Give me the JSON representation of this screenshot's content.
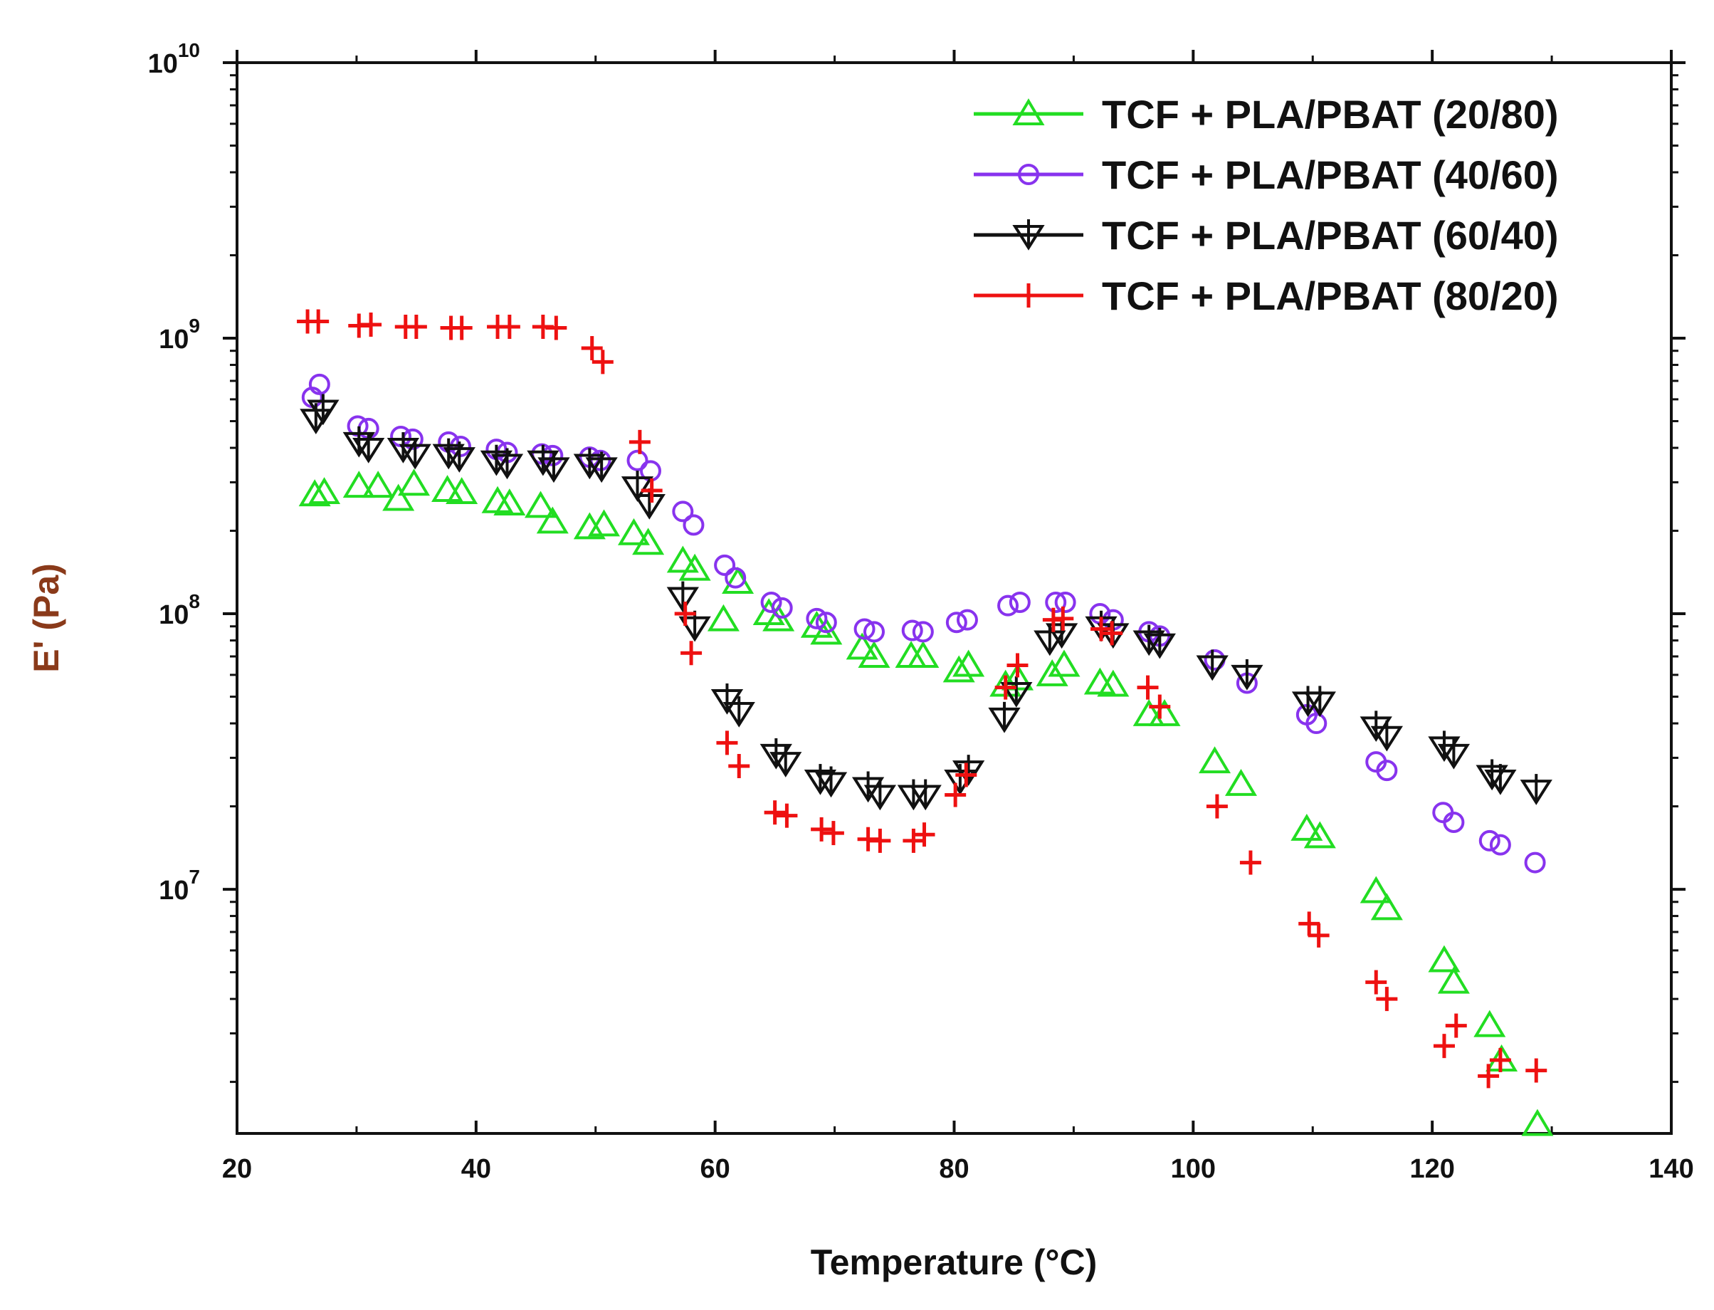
{
  "chart_data": {
    "type": "scatter",
    "xlabel": "Temperature (°C)",
    "ylabel": "E' (Pa)",
    "xlim": [
      20,
      140
    ],
    "ylim": [
      1300000.0,
      10000000000.0
    ],
    "log_y": true,
    "grid": false,
    "legend_position": "top-right",
    "x_ticks": [
      20,
      40,
      60,
      80,
      100,
      120,
      140
    ],
    "x_tick_labels": [
      "20",
      "40",
      "60",
      "80",
      "100",
      "120",
      "140"
    ],
    "y_ticks": [
      {
        "value": 10000000.0,
        "base": "10",
        "exp": "7"
      },
      {
        "value": 100000000.0,
        "base": "10",
        "exp": "8"
      },
      {
        "value": 1000000000.0,
        "base": "10",
        "exp": "9"
      },
      {
        "value": 10000000000.0,
        "base": "10",
        "exp": "10"
      }
    ],
    "series": [
      {
        "name": "TCF + PLA/PBAT (20/80)",
        "color": "#22dd22",
        "marker": "triangle-up",
        "points": [
          [
            26.5,
            270000000.0
          ],
          [
            27.3,
            275000000.0
          ],
          [
            30.2,
            290000000.0
          ],
          [
            31.8,
            290000000.0
          ],
          [
            33.5,
            260000000.0
          ],
          [
            34.8,
            295000000.0
          ],
          [
            37.6,
            280000000.0
          ],
          [
            38.8,
            275000000.0
          ],
          [
            41.8,
            255000000.0
          ],
          [
            42.8,
            250000000.0
          ],
          [
            45.4,
            245000000.0
          ],
          [
            46.4,
            215000000.0
          ],
          [
            49.5,
            205000000.0
          ],
          [
            50.7,
            210000000.0
          ],
          [
            53.2,
            195000000.0
          ],
          [
            54.4,
            180000000.0
          ],
          [
            57.3,
            155000000.0
          ],
          [
            58.3,
            145000000.0
          ],
          [
            60.7,
            95000000.0
          ],
          [
            61.9,
            130000000.0
          ],
          [
            64.5,
            100000000.0
          ],
          [
            65.3,
            95000000.0
          ],
          [
            68.5,
            90000000.0
          ],
          [
            69.3,
            85000000.0
          ],
          [
            72.3,
            75000000.0
          ],
          [
            73.3,
            70000000.0
          ],
          [
            76.4,
            70000000.0
          ],
          [
            77.4,
            70000000.0
          ],
          [
            80.4,
            62000000.0
          ],
          [
            81.2,
            65000000.0
          ],
          [
            84.3,
            55000000.0
          ],
          [
            85.3,
            58000000.0
          ],
          [
            88.2,
            60000000.0
          ],
          [
            89.2,
            65000000.0
          ],
          [
            92.2,
            56000000.0
          ],
          [
            93.3,
            55000000.0
          ],
          [
            96.3,
            43000000.0
          ],
          [
            97.6,
            43000000.0
          ],
          [
            101.8,
            29000000.0
          ],
          [
            104.0,
            24000000.0
          ],
          [
            109.5,
            16500000.0
          ],
          [
            110.6,
            15500000.0
          ],
          [
            115.3,
            9800000.0
          ],
          [
            116.2,
            8500000.0
          ],
          [
            121.0,
            5500000.0
          ],
          [
            121.8,
            4600000.0
          ],
          [
            124.8,
            3200000.0
          ],
          [
            125.8,
            2400000.0
          ],
          [
            128.8,
            1400000.0
          ]
        ]
      },
      {
        "name": "TCF + PLA/PBAT (40/60)",
        "color": "#8833ee",
        "marker": "circle",
        "points": [
          [
            26.3,
            610000000.0
          ],
          [
            26.9,
            680000000.0
          ],
          [
            30.1,
            480000000.0
          ],
          [
            31.0,
            470000000.0
          ],
          [
            33.7,
            440000000.0
          ],
          [
            34.7,
            430000000.0
          ],
          [
            37.7,
            420000000.0
          ],
          [
            38.7,
            405000000.0
          ],
          [
            41.7,
            395000000.0
          ],
          [
            42.6,
            385000000.0
          ],
          [
            45.5,
            380000000.0
          ],
          [
            46.4,
            375000000.0
          ],
          [
            49.5,
            370000000.0
          ],
          [
            50.4,
            360000000.0
          ],
          [
            53.5,
            360000000.0
          ],
          [
            54.6,
            330000000.0
          ],
          [
            57.3,
            235000000.0
          ],
          [
            58.2,
            210000000.0
          ],
          [
            60.8,
            150000000.0
          ],
          [
            61.7,
            135000000.0
          ],
          [
            64.7,
            110000000.0
          ],
          [
            65.6,
            105000000.0
          ],
          [
            68.5,
            96000000.0
          ],
          [
            69.3,
            93000000.0
          ],
          [
            72.5,
            88000000.0
          ],
          [
            73.3,
            86000000.0
          ],
          [
            76.5,
            87000000.0
          ],
          [
            77.4,
            86000000.0
          ],
          [
            80.2,
            93000000.0
          ],
          [
            81.1,
            95000000.0
          ],
          [
            84.5,
            107000000.0
          ],
          [
            85.5,
            110000000.0
          ],
          [
            88.5,
            110000000.0
          ],
          [
            89.3,
            110000000.0
          ],
          [
            92.2,
            100000000.0
          ],
          [
            93.3,
            95000000.0
          ],
          [
            96.3,
            86000000.0
          ],
          [
            97.2,
            83000000.0
          ],
          [
            101.8,
            68000000.0
          ],
          [
            104.5,
            56000000.0
          ],
          [
            109.5,
            43000000.0
          ],
          [
            110.3,
            40000000.0
          ],
          [
            115.3,
            29000000.0
          ],
          [
            116.2,
            27000000.0
          ],
          [
            120.9,
            19000000.0
          ],
          [
            121.8,
            17500000.0
          ],
          [
            124.8,
            15000000.0
          ],
          [
            125.7,
            14500000.0
          ],
          [
            128.6,
            12500000.0
          ]
        ]
      },
      {
        "name": "TCF + PLA/PBAT (60/40)",
        "color": "#111111",
        "marker": "triangle-down-cross",
        "points": [
          [
            26.6,
            510000000.0
          ],
          [
            27.2,
            550000000.0
          ],
          [
            30.2,
            420000000.0
          ],
          [
            31.0,
            400000000.0
          ],
          [
            33.9,
            400000000.0
          ],
          [
            34.9,
            380000000.0
          ],
          [
            37.7,
            380000000.0
          ],
          [
            38.6,
            370000000.0
          ],
          [
            41.7,
            360000000.0
          ],
          [
            42.6,
            350000000.0
          ],
          [
            45.6,
            360000000.0
          ],
          [
            46.5,
            340000000.0
          ],
          [
            49.5,
            350000000.0
          ],
          [
            50.5,
            340000000.0
          ],
          [
            53.5,
            290000000.0
          ],
          [
            54.5,
            250000000.0
          ],
          [
            57.3,
            115000000.0
          ],
          [
            58.3,
            90000000.0
          ],
          [
            61.0,
            49000000.0
          ],
          [
            62.0,
            44000000.0
          ],
          [
            65.1,
            31000000.0
          ],
          [
            65.9,
            29000000.0
          ],
          [
            68.8,
            25000000.0
          ],
          [
            69.7,
            24500000.0
          ],
          [
            72.8,
            23500000.0
          ],
          [
            73.8,
            22000000.0
          ],
          [
            76.6,
            22000000.0
          ],
          [
            77.6,
            22000000.0
          ],
          [
            80.5,
            25000000.0
          ],
          [
            81.2,
            27000000.0
          ],
          [
            84.2,
            42000000.0
          ],
          [
            85.2,
            52000000.0
          ],
          [
            88.0,
            80000000.0
          ],
          [
            89.0,
            85000000.0
          ],
          [
            92.3,
            90000000.0
          ],
          [
            93.3,
            85000000.0
          ],
          [
            96.3,
            80000000.0
          ],
          [
            97.2,
            78000000.0
          ],
          [
            101.6,
            65000000.0
          ],
          [
            104.5,
            60000000.0
          ],
          [
            109.6,
            48000000.0
          ],
          [
            110.6,
            48000000.0
          ],
          [
            115.3,
            39000000.0
          ],
          [
            116.2,
            36000000.0
          ],
          [
            121.0,
            33000000.0
          ],
          [
            121.8,
            31000000.0
          ],
          [
            125.0,
            26000000.0
          ],
          [
            125.7,
            25000000.0
          ],
          [
            128.7,
            23000000.0
          ]
        ]
      },
      {
        "name": "TCF + PLA/PBAT (80/20)",
        "color": "#ee1111",
        "marker": "plus",
        "points": [
          [
            25.9,
            1150000000.0
          ],
          [
            26.8,
            1150000000.0
          ],
          [
            30.2,
            1110000000.0
          ],
          [
            31.2,
            1120000000.0
          ],
          [
            34.1,
            1100000000.0
          ],
          [
            35.0,
            1100000000.0
          ],
          [
            37.9,
            1090000000.0
          ],
          [
            38.8,
            1090000000.0
          ],
          [
            41.8,
            1100000000.0
          ],
          [
            42.8,
            1100000000.0
          ],
          [
            45.6,
            1100000000.0
          ],
          [
            46.7,
            1090000000.0
          ],
          [
            49.7,
            920000000.0
          ],
          [
            50.6,
            820000000.0
          ],
          [
            53.7,
            420000000.0
          ],
          [
            54.7,
            280000000.0
          ],
          [
            57.5,
            100000000.0
          ],
          [
            58.0,
            72000000.0
          ],
          [
            61.0,
            34000000.0
          ],
          [
            62.0,
            28000000.0
          ],
          [
            65.0,
            19000000.0
          ],
          [
            66.0,
            18500000.0
          ],
          [
            68.9,
            16500000.0
          ],
          [
            69.9,
            16000000.0
          ],
          [
            72.8,
            15200000.0
          ],
          [
            73.8,
            15000000.0
          ],
          [
            76.6,
            15000000.0
          ],
          [
            77.5,
            15800000.0
          ],
          [
            80.1,
            22000000.0
          ],
          [
            81.0,
            26000000.0
          ],
          [
            84.3,
            54000000.0
          ],
          [
            85.3,
            65000000.0
          ],
          [
            88.3,
            95000000.0
          ],
          [
            89.1,
            96000000.0
          ],
          [
            92.3,
            88000000.0
          ],
          [
            93.2,
            85000000.0
          ],
          [
            96.2,
            54000000.0
          ],
          [
            97.2,
            46000000.0
          ],
          [
            102.0,
            20000000.0
          ],
          [
            104.8,
            12500000.0
          ],
          [
            109.7,
            7500000.0
          ],
          [
            110.5,
            6800000.0
          ],
          [
            115.3,
            4600000.0
          ],
          [
            116.2,
            4000000.0
          ],
          [
            121.0,
            2700000.0
          ],
          [
            122.0,
            3200000.0
          ],
          [
            124.7,
            2100000.0
          ],
          [
            125.7,
            2400000.0
          ],
          [
            128.7,
            2200000.0
          ]
        ]
      }
    ]
  }
}
